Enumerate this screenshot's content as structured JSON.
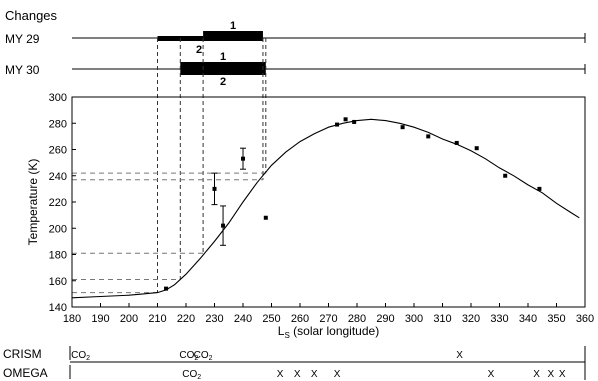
{
  "changes_heading": "Changes",
  "timeline": {
    "rows": [
      {
        "label": "MY 29",
        "bars": [
          {
            "from": 210,
            "to": 226,
            "num": "2"
          },
          {
            "from": 226,
            "to": 247,
            "num": "1"
          }
        ]
      },
      {
        "label": "MY 30",
        "bars": [
          {
            "from": 218,
            "to": 248,
            "num": "1"
          },
          {
            "from": 218,
            "to": 248,
            "num": "2"
          }
        ]
      }
    ]
  },
  "chart_data": {
    "type": "line",
    "xlabel_main": "L",
    "xlabel_sub": "S",
    "xlabel_rest": " (solar longitude)",
    "ylabel": "Temperature (K)",
    "xlim": [
      180,
      360
    ],
    "ylim": [
      140,
      300
    ],
    "xticks": [
      180,
      190,
      200,
      210,
      220,
      230,
      240,
      250,
      260,
      270,
      280,
      290,
      300,
      310,
      320,
      330,
      340,
      350,
      360
    ],
    "yticks": [
      140,
      160,
      180,
      200,
      220,
      240,
      260,
      280,
      300
    ],
    "grid": false,
    "curve": [
      [
        180,
        147
      ],
      [
        190,
        148
      ],
      [
        200,
        149
      ],
      [
        205,
        150
      ],
      [
        210,
        151
      ],
      [
        213,
        153
      ],
      [
        216,
        157
      ],
      [
        220,
        165
      ],
      [
        225,
        177
      ],
      [
        230,
        190
      ],
      [
        235,
        204
      ],
      [
        240,
        220
      ],
      [
        245,
        235
      ],
      [
        250,
        248
      ],
      [
        255,
        258
      ],
      [
        260,
        266
      ],
      [
        265,
        272
      ],
      [
        270,
        277
      ],
      [
        275,
        280
      ],
      [
        280,
        282
      ],
      [
        285,
        283
      ],
      [
        290,
        282
      ],
      [
        295,
        280
      ],
      [
        300,
        277
      ],
      [
        305,
        273
      ],
      [
        310,
        268
      ],
      [
        315,
        264
      ],
      [
        320,
        259
      ],
      [
        325,
        253
      ],
      [
        330,
        246
      ],
      [
        335,
        240
      ],
      [
        340,
        233
      ],
      [
        345,
        227
      ],
      [
        350,
        219
      ],
      [
        355,
        212
      ],
      [
        358,
        208
      ]
    ],
    "points": [
      {
        "x": 213,
        "y": 154
      },
      {
        "x": 230,
        "y": 230,
        "err": 12
      },
      {
        "x": 233,
        "y": 202,
        "err": 15
      },
      {
        "x": 240,
        "y": 253,
        "err": 8
      },
      {
        "x": 248,
        "y": 208
      },
      {
        "x": 273,
        "y": 279
      },
      {
        "x": 276,
        "y": 283
      },
      {
        "x": 279,
        "y": 281
      },
      {
        "x": 296,
        "y": 277
      },
      {
        "x": 305,
        "y": 270
      },
      {
        "x": 315,
        "y": 265
      },
      {
        "x": 322,
        "y": 261
      },
      {
        "x": 332,
        "y": 240
      },
      {
        "x": 344,
        "y": 230
      }
    ],
    "guides": [
      {
        "x": 210,
        "y": 151
      },
      {
        "x": 218,
        "y": 161
      },
      {
        "x": 226,
        "y": 181
      },
      {
        "x": 247,
        "y": 237
      },
      {
        "x": 248,
        "y": 242
      }
    ]
  },
  "observations": {
    "rows": [
      {
        "label": "CRISM",
        "marks": [
          {
            "x": 183,
            "kind": "co2"
          },
          {
            "x": 221,
            "kind": "co2"
          },
          {
            "x": 226,
            "kind": "co2"
          },
          {
            "x": 316,
            "kind": "x"
          }
        ]
      },
      {
        "label": "OMEGA",
        "marks": [
          {
            "x": 222,
            "kind": "co2"
          },
          {
            "x": 253,
            "kind": "x"
          },
          {
            "x": 259,
            "kind": "x"
          },
          {
            "x": 265,
            "kind": "x"
          },
          {
            "x": 273,
            "kind": "x"
          },
          {
            "x": 327,
            "kind": "x"
          },
          {
            "x": 343,
            "kind": "x"
          },
          {
            "x": 348,
            "kind": "x"
          },
          {
            "x": 352,
            "kind": "x"
          }
        ]
      }
    ],
    "co2_text": "CO",
    "co2_sub": "2",
    "x_text": "X"
  }
}
